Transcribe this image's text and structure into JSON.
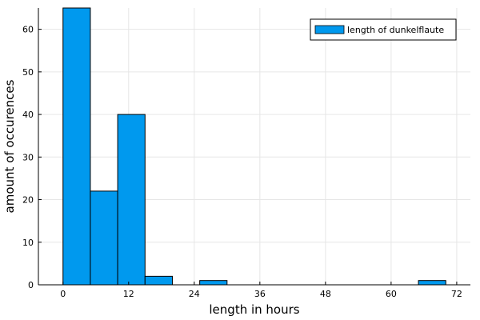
{
  "chart_data": {
    "type": "bar",
    "title": "",
    "xlabel": "length in hours",
    "ylabel": "amount of occurences",
    "bins": [
      {
        "x0": 0,
        "x1": 5,
        "count": 65
      },
      {
        "x0": 5,
        "x1": 10,
        "count": 22
      },
      {
        "x0": 10,
        "x1": 15,
        "count": 40
      },
      {
        "x0": 15,
        "x1": 20,
        "count": 2
      },
      {
        "x0": 20,
        "x1": 25,
        "count": 0
      },
      {
        "x0": 25,
        "x1": 30,
        "count": 1
      },
      {
        "x0": 30,
        "x1": 35,
        "count": 0
      },
      {
        "x0": 35,
        "x1": 40,
        "count": 0
      },
      {
        "x0": 40,
        "x1": 45,
        "count": 0
      },
      {
        "x0": 45,
        "x1": 50,
        "count": 0
      },
      {
        "x0": 50,
        "x1": 55,
        "count": 0
      },
      {
        "x0": 55,
        "x1": 60,
        "count": 0
      },
      {
        "x0": 60,
        "x1": 65,
        "count": 0
      },
      {
        "x0": 65,
        "x1": 70,
        "count": 1
      }
    ],
    "xticks": [
      0,
      12,
      24,
      36,
      48,
      60,
      72
    ],
    "yticks": [
      0,
      10,
      20,
      30,
      40,
      50,
      60
    ],
    "xlim": [
      -4.5,
      74.5
    ],
    "ylim": [
      0,
      65
    ],
    "grid": true,
    "legend": {
      "position": "top-right",
      "entries": [
        "length of dunkelflaute"
      ]
    },
    "series_color": "#0099ee"
  }
}
